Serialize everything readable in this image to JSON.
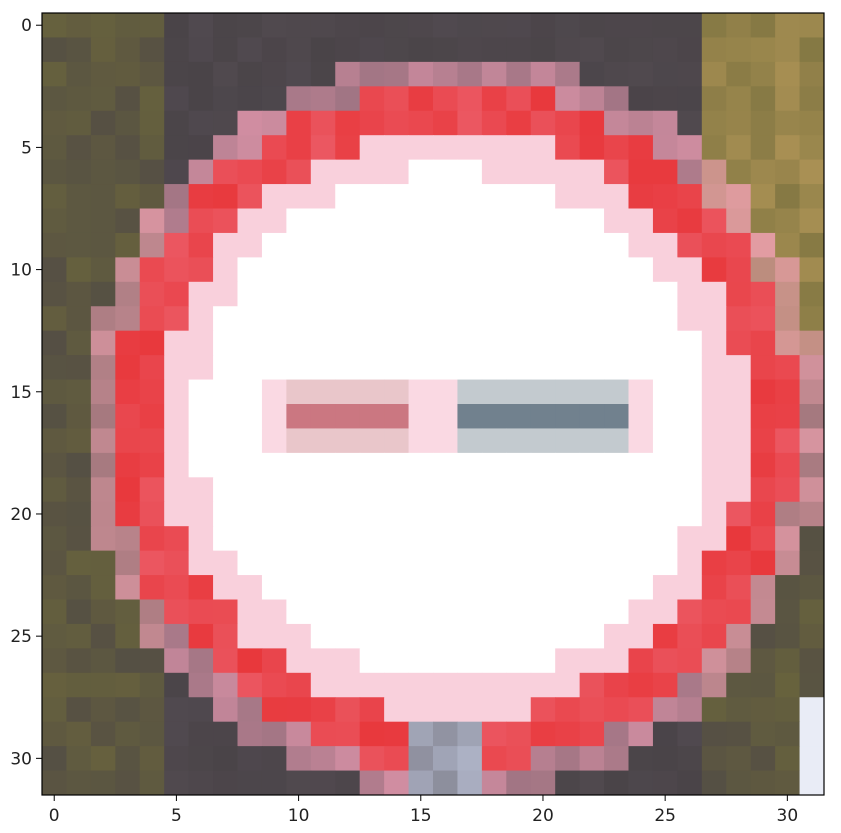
{
  "image": {
    "grid_size": 32,
    "description_colors": {
      "background_dark": "#4a4448",
      "background_olive": "#6f6a3a",
      "background_tan": "#b89a5a",
      "ring_red": "#e8383c",
      "ring_pink": "#f2a0b8",
      "inner_white": "#ffffff",
      "bar_red": "#c8707a",
      "bar_blue": "#6a7a88",
      "post_blue": "#c8d0e8"
    }
  },
  "axes": {
    "x_ticks": [
      "0",
      "5",
      "10",
      "15",
      "20",
      "25",
      "30"
    ],
    "y_ticks": [
      "0",
      "5",
      "10",
      "15",
      "20",
      "25",
      "30"
    ],
    "x_tick_values": [
      0,
      5,
      10,
      15,
      20,
      25,
      30
    ],
    "y_tick_values": [
      0,
      5,
      10,
      15,
      20,
      25,
      30
    ]
  }
}
